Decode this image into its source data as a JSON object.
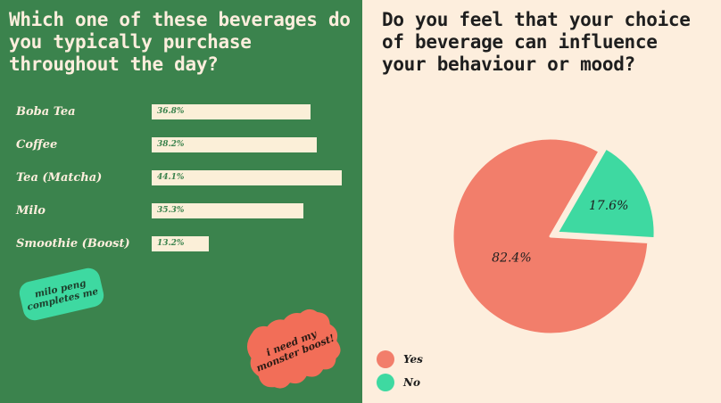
{
  "colors": {
    "panel_left_bg": "#3b834d",
    "panel_right_bg": "#fdeedd",
    "bar_fill": "#fbefd8",
    "pie_yes": "#f27e6b",
    "pie_no": "#3ed9a1",
    "sticker_green": "#3ed9a1",
    "sticker_red": "#f26e58"
  },
  "left_panel": {
    "title": "Which one of these beverages do you typically purchase throughout the day?",
    "sticker_green": "milo peng completes me",
    "sticker_red": "i need my monster boost!"
  },
  "right_panel": {
    "title": "Do you feel that your choice of beverage can influence your behaviour or mood?"
  },
  "chart_data": [
    {
      "type": "bar",
      "orientation": "horizontal",
      "title": "Which one of these beverages do you typically purchase throughout the day?",
      "categories": [
        "Boba Tea",
        "Coffee",
        "Tea (Matcha)",
        "Milo",
        "Smoothie (Boost)"
      ],
      "values": [
        36.8,
        38.2,
        44.1,
        35.3,
        13.2
      ],
      "value_labels": [
        "36.8%",
        "38.2%",
        "44.1%",
        "35.3%",
        "13.2%"
      ],
      "unit": "%",
      "grid": false
    },
    {
      "type": "pie",
      "title": "Do you feel that your choice of beverage can influence your behaviour or mood?",
      "labels": [
        "Yes",
        "No"
      ],
      "values": [
        82.4,
        17.6
      ],
      "value_labels": [
        "82.4%",
        "17.6%"
      ],
      "legend_position": "bottom-left"
    }
  ]
}
